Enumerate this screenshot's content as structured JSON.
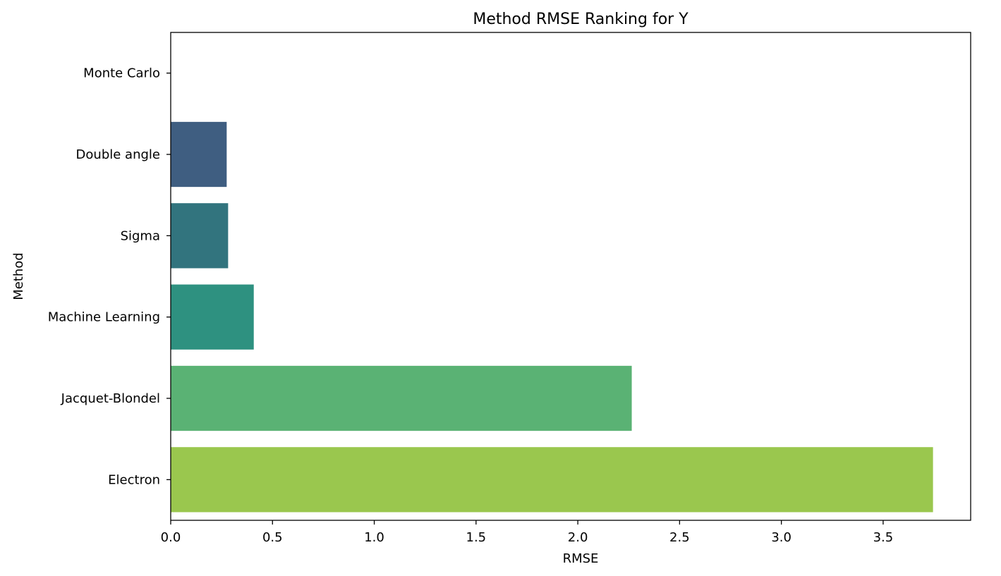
{
  "chart_data": {
    "type": "bar",
    "orientation": "horizontal",
    "title": "Method RMSE Ranking for Y",
    "xlabel": "RMSE",
    "ylabel": "Method",
    "categories": [
      "Monte Carlo",
      "Double angle",
      "Sigma",
      "Machine Learning",
      "Jacquet-Blondel",
      "Electron"
    ],
    "values": [
      0.0,
      0.275,
      0.282,
      0.408,
      2.265,
      3.745
    ],
    "colors": [
      "#46327e",
      "#3f5e81",
      "#32747e",
      "#2e9180",
      "#5ab274",
      "#9ac74e"
    ],
    "xlim": [
      0,
      3.93
    ],
    "xticks": [
      0.0,
      0.5,
      1.0,
      1.5,
      2.0,
      2.5,
      3.0,
      3.5
    ],
    "xtick_labels": [
      "0.0",
      "0.5",
      "1.0",
      "1.5",
      "2.0",
      "2.5",
      "3.0",
      "3.5"
    ],
    "grid": false,
    "legend": "none"
  }
}
